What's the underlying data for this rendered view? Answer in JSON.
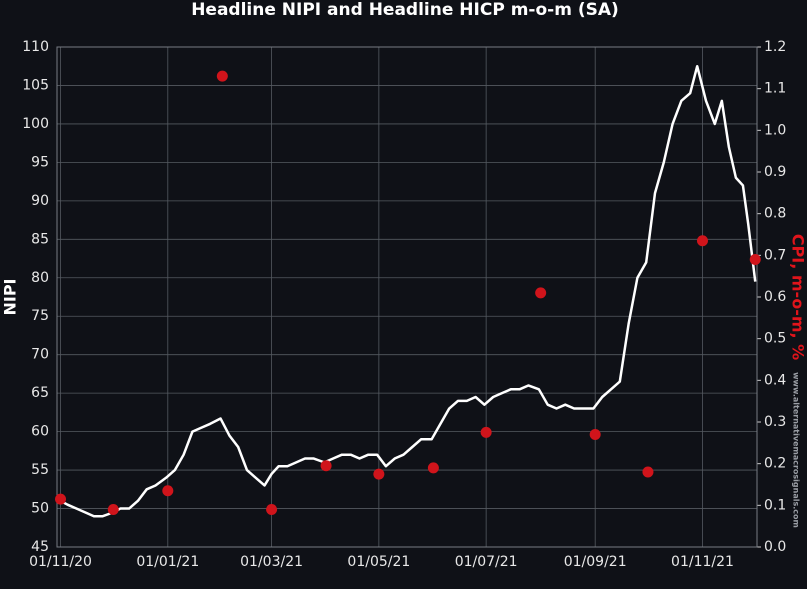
{
  "chart_data": {
    "type": "line",
    "title": "Headline NIPI and Headline HICP m-o-m (SA)",
    "y_label": "NIPI",
    "y2_label": "CPI, m-o-m, %",
    "watermark": "www.alternativemacrosignals.com",
    "background": "#0f1117",
    "grid": true,
    "xlim": [
      "2020-10-30",
      "2021-12-02"
    ],
    "xticks": [
      {
        "value": "2020-11-01",
        "label": "01/11/20"
      },
      {
        "value": "2021-01-01",
        "label": "01/01/21"
      },
      {
        "value": "2021-03-01",
        "label": "01/03/21"
      },
      {
        "value": "2021-05-01",
        "label": "01/05/21"
      },
      {
        "value": "2021-07-01",
        "label": "01/07/21"
      },
      {
        "value": "2021-09-01",
        "label": "01/09/21"
      },
      {
        "value": "2021-11-01",
        "label": "01/11/21"
      }
    ],
    "ylim": [
      45,
      110
    ],
    "yticks": [
      45,
      50,
      55,
      60,
      65,
      70,
      75,
      80,
      85,
      90,
      95,
      100,
      105,
      110
    ],
    "y2lim": [
      0,
      1.2
    ],
    "y2ticks": [
      {
        "value": 0,
        "label": "0.0"
      },
      0.1,
      0.2,
      0.3,
      0.4,
      0.5,
      0.6,
      0.7,
      0.8,
      0.9,
      {
        "value": 1,
        "label": "1.0"
      },
      1.1,
      1.2
    ],
    "y2_color": "#e0141b",
    "series": [
      {
        "type": "line",
        "color": "#ffffff",
        "x": [
          "2020-11-01",
          "2020-11-05",
          "2020-11-10",
          "2020-11-15",
          "2020-11-20",
          "2020-11-25",
          "2020-12-01",
          "2020-12-05",
          "2020-12-10",
          "2020-12-15",
          "2020-12-20",
          "2020-12-25",
          "2020-12-31",
          "2021-01-05",
          "2021-01-10",
          "2021-01-15",
          "2021-01-20",
          "2021-01-25",
          "2021-01-31",
          "2021-02-05",
          "2021-02-10",
          "2021-02-15",
          "2021-02-20",
          "2021-02-25",
          "2021-03-01",
          "2021-03-05",
          "2021-03-10",
          "2021-03-15",
          "2021-03-20",
          "2021-03-25",
          "2021-03-31",
          "2021-04-05",
          "2021-04-10",
          "2021-04-15",
          "2021-04-20",
          "2021-04-25",
          "2021-04-30",
          "2021-05-05",
          "2021-05-10",
          "2021-05-15",
          "2021-05-20",
          "2021-05-25",
          "2021-05-31",
          "2021-06-05",
          "2021-06-10",
          "2021-06-15",
          "2021-06-20",
          "2021-06-25",
          "2021-06-30",
          "2021-07-05",
          "2021-07-10",
          "2021-07-15",
          "2021-07-20",
          "2021-07-25",
          "2021-07-31",
          "2021-08-05",
          "2021-08-10",
          "2021-08-15",
          "2021-08-20",
          "2021-08-25",
          "2021-08-31",
          "2021-09-05",
          "2021-09-10",
          "2021-09-15",
          "2021-09-20",
          "2021-09-25",
          "2021-09-30",
          "2021-10-05",
          "2021-10-10",
          "2021-10-15",
          "2021-10-20",
          "2021-10-25",
          "2021-10-29",
          "2021-11-03",
          "2021-11-08",
          "2021-11-12",
          "2021-11-16",
          "2021-11-20",
          "2021-11-24",
          "2021-11-27",
          "2021-12-01"
        ],
        "values": [
          51,
          50.5,
          50,
          49.5,
          49,
          49,
          49.5,
          50,
          50,
          51,
          52.5,
          53,
          54,
          55,
          57,
          60,
          60.5,
          61,
          61.7,
          59.5,
          58,
          55,
          54,
          53,
          54.5,
          55.5,
          55.5,
          56,
          56.5,
          56.5,
          56,
          56.5,
          57,
          57,
          56.5,
          57,
          57,
          55.5,
          56.5,
          57,
          58,
          59,
          59,
          61,
          63,
          64,
          64,
          64.5,
          63.5,
          64.5,
          65,
          65.5,
          65.5,
          66,
          65.5,
          63.5,
          63,
          63.5,
          63,
          63,
          63,
          64.5,
          65.5,
          66.5,
          74,
          80,
          82,
          91,
          95,
          100,
          103,
          104,
          107.5,
          103,
          100,
          103,
          97,
          93,
          92,
          87,
          79.5
        ]
      },
      {
        "type": "scatter",
        "axis": "y2",
        "color": "#d0141b",
        "x": [
          "2020-11-01",
          "2020-12-01",
          "2021-01-01",
          "2021-02-01",
          "2021-03-01",
          "2021-04-01",
          "2021-05-01",
          "2021-06-01",
          "2021-07-01",
          "2021-08-01",
          "2021-09-01",
          "2021-10-01",
          "2021-11-01",
          "2021-12-01"
        ],
        "values": [
          0.115,
          0.09,
          0.135,
          1.13,
          0.09,
          0.195,
          0.175,
          0.19,
          0.275,
          0.61,
          0.27,
          0.18,
          0.735,
          0.69
        ]
      }
    ]
  }
}
